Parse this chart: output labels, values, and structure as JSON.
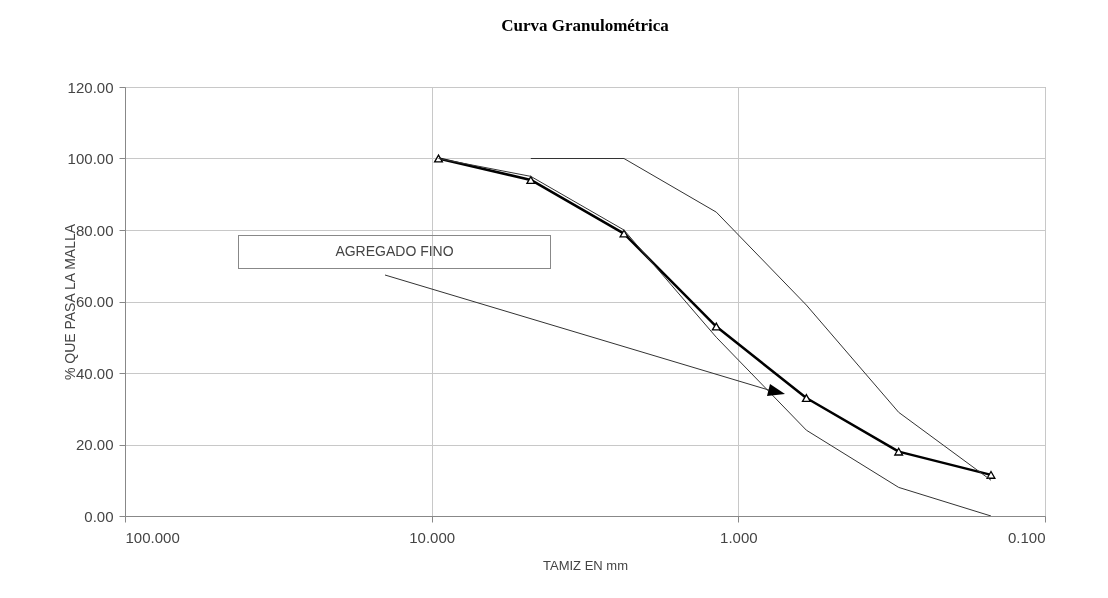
{
  "chart_data": {
    "type": "line",
    "title": "Curva Granulométrica",
    "xlabel": "TAMIZ EN mm",
    "ylabel": "% QUE PASA LA MALLA",
    "log": "x",
    "grid": true,
    "line_style": "solid",
    "xlim": [
      100,
      0.1
    ],
    "xticks": [
      {
        "value": 100,
        "label": "100.000"
      },
      {
        "value": 10,
        "label": "10.000"
      },
      {
        "value": 1,
        "label": "1.000"
      },
      {
        "value": 0.1,
        "label": "0.100"
      }
    ],
    "ylim": [
      0,
      120
    ],
    "yticks": [
      {
        "value": 0,
        "label": "0.00"
      },
      {
        "value": 20,
        "label": "20.00"
      },
      {
        "value": 40,
        "label": "40.00"
      },
      {
        "value": 60,
        "label": "60.00"
      },
      {
        "value": 80,
        "label": "80.00"
      },
      {
        "value": 100,
        "label": "100.00"
      },
      {
        "value": 120,
        "label": "120.00"
      }
    ],
    "annotations": [
      "AGREGADO FINO"
    ],
    "series": [
      {
        "color": "#000000",
        "marker": "triangle",
        "x": [
          9.5,
          4.75,
          2.36,
          1.18,
          0.6,
          0.3,
          0.15
        ],
        "values": [
          100,
          94,
          79,
          53,
          33,
          18,
          11.5
        ]
      },
      {
        "color": "#333333",
        "marker": "none",
        "x": [
          4.75,
          2.36,
          1.18,
          0.6,
          0.3,
          0.15
        ],
        "values": [
          100,
          100,
          85,
          59,
          29,
          10
        ]
      },
      {
        "color": "#333333",
        "marker": "none",
        "x": [
          9.5,
          4.75,
          2.36,
          1.18,
          0.6,
          0.3,
          0.15
        ],
        "values": [
          100,
          95,
          80,
          50,
          24,
          8,
          0
        ]
      }
    ]
  }
}
